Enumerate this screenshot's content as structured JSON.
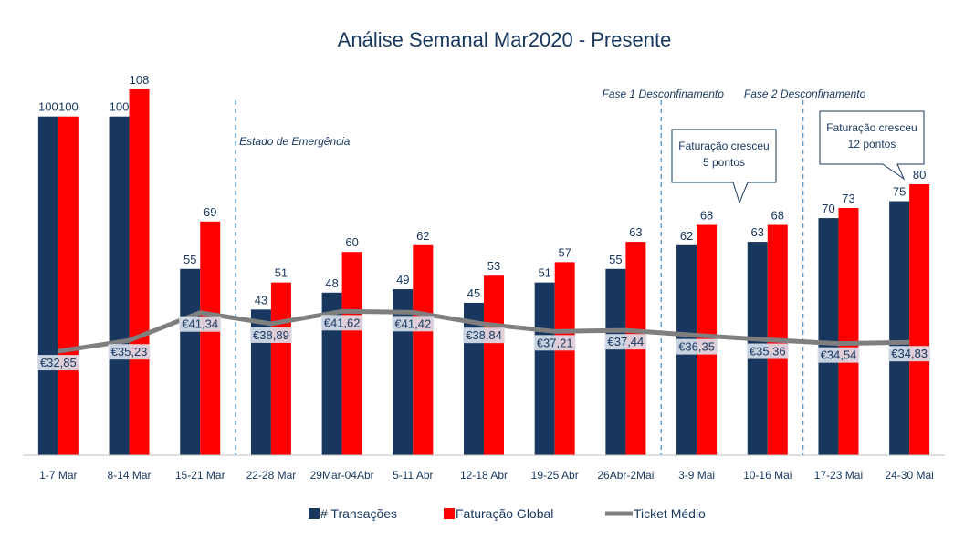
{
  "chart_data": {
    "type": "bar",
    "title": "Análise Semanal Mar2020 - Presente",
    "categories": [
      "1-7 Mar",
      "8-14 Mar",
      "15-21 Mar",
      "22-28 Mar",
      "29Mar-04Abr",
      "5-11 Abr",
      "12-18 Abr",
      "19-25 Abr",
      "26Abr-2Mai",
      "3-9 Mai",
      "10-16 Mai",
      "17-23 Mai",
      "24-30 Mai"
    ],
    "series": [
      {
        "name": "# Transações",
        "kind": "bar",
        "color": "#17375e",
        "values": [
          100,
          100,
          55,
          43,
          48,
          49,
          45,
          51,
          55,
          62,
          63,
          70,
          75
        ],
        "labels": [
          "100",
          "100",
          "55",
          "43",
          "48",
          "49",
          "45",
          "51",
          "55",
          "62",
          "63",
          "70",
          "75"
        ]
      },
      {
        "name": "Faturação Global",
        "kind": "bar",
        "color": "#ff0000",
        "values": [
          100,
          108,
          69,
          51,
          60,
          62,
          53,
          57,
          63,
          68,
          68,
          73,
          80
        ],
        "labels": [
          "100",
          "108",
          "69",
          "51",
          "60",
          "62",
          "53",
          "57",
          "63",
          "68",
          "68",
          "73",
          "80"
        ]
      },
      {
        "name": "Ticket Médio",
        "kind": "line",
        "color": "#7f7f7f",
        "values": [
          32.85,
          35.23,
          41.34,
          38.89,
          41.62,
          41.42,
          38.84,
          37.21,
          37.44,
          36.35,
          35.36,
          34.54,
          34.83
        ],
        "labels": [
          "€32,85",
          "€35,23",
          "€41,34",
          "€38,89",
          "€41,62",
          "€41,42",
          "€38,84",
          "€37,21",
          "€37,44",
          "€36,35",
          "€35,36",
          "€34,54",
          "€34,83"
        ]
      }
    ],
    "bar_ylim": [
      0,
      108
    ],
    "line_ylim": [
      0,
      100
    ],
    "grid": false,
    "legend_position": "bottom",
    "annotations": {
      "phase_lines": [
        {
          "text": "Estado de Emergência",
          "after_category": "15-21 Mar"
        },
        {
          "text": "Fase 1 Desconfinamento",
          "after_category": "26Abr-2Mai"
        },
        {
          "text": "Fase 2 Desconfinamento",
          "after_category": "10-16 Mai"
        }
      ],
      "callouts": [
        {
          "lines": [
            "Faturação cresceu",
            "5 pontos"
          ],
          "category": "10-16 Mai"
        },
        {
          "lines": [
            "Faturação cresceu",
            "12 pontos"
          ],
          "category": "24-30 Mai"
        }
      ]
    }
  }
}
